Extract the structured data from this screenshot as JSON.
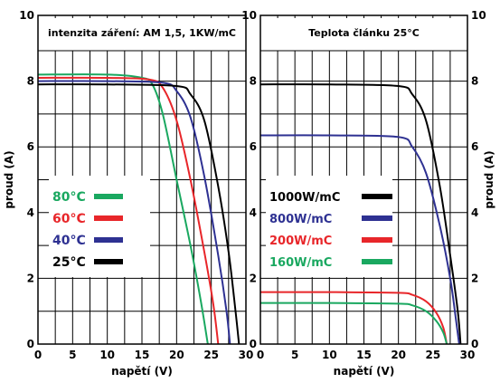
{
  "chart_data": [
    {
      "type": "line",
      "title": "intenzita záření: AM 1,5, 1KW/mC",
      "xlabel": "napětí (V)",
      "ylabel": "proud (A)",
      "xlim": [
        0,
        30
      ],
      "ylim": [
        0,
        10
      ],
      "xticks": [
        "0",
        "5",
        "10",
        "15",
        "20",
        "25",
        "30"
      ],
      "yticks": [
        "0",
        "2",
        "4",
        "6",
        "8",
        "10"
      ],
      "grid": true,
      "legend": "left",
      "series": [
        {
          "name": "80°C",
          "color": "#1aa860",
          "isc": 8.2,
          "voc": 24.5,
          "knee": 16.5,
          "points": [
            [
              0,
              8.2
            ],
            [
              10,
              8.2
            ],
            [
              15,
              8.1
            ],
            [
              16.5,
              7.9
            ],
            [
              18,
              7.0
            ],
            [
              20,
              5.0
            ],
            [
              22,
              3.0
            ],
            [
              23.5,
              1.3
            ],
            [
              24.5,
              0
            ]
          ]
        },
        {
          "name": "60°C",
          "color": "#e8262a",
          "isc": 8.1,
          "voc": 26.0,
          "knee": 18.0,
          "points": [
            [
              0,
              8.1
            ],
            [
              10,
              8.1
            ],
            [
              16,
              8.05
            ],
            [
              18,
              7.8
            ],
            [
              20,
              6.8
            ],
            [
              22,
              5.0
            ],
            [
              24,
              2.8
            ],
            [
              25.3,
              1.2
            ],
            [
              26,
              0
            ]
          ]
        },
        {
          "name": "40°C",
          "color": "#2e3192",
          "isc": 8.0,
          "voc": 27.7,
          "knee": 19.5,
          "points": [
            [
              0,
              8.0
            ],
            [
              10,
              8.0
            ],
            [
              18,
              7.95
            ],
            [
              20,
              7.7
            ],
            [
              22,
              6.9
            ],
            [
              24,
              5.1
            ],
            [
              26,
              2.7
            ],
            [
              27.2,
              1.0
            ],
            [
              27.7,
              0
            ]
          ]
        },
        {
          "name": "25°C",
          "color": "#000000",
          "isc": 7.9,
          "voc": 29.0,
          "knee": 21.0,
          "points": [
            [
              0,
              7.9
            ],
            [
              10,
              7.9
            ],
            [
              20,
              7.85
            ],
            [
              22,
              7.6
            ],
            [
              24,
              6.8
            ],
            [
              26,
              4.8
            ],
            [
              27.5,
              2.8
            ],
            [
              28.5,
              1.0
            ],
            [
              29,
              0
            ]
          ]
        }
      ]
    },
    {
      "type": "line",
      "title": "Teplota článku 25°C",
      "xlabel": "napětí (V)",
      "ylabel": "proud (A)",
      "xlim": [
        0,
        30
      ],
      "ylim": [
        0,
        10
      ],
      "xticks": [
        "0",
        "5",
        "10",
        "15",
        "20",
        "25",
        "30"
      ],
      "yticks": [
        "0",
        "2",
        "4",
        "6",
        "8",
        "10"
      ],
      "grid": true,
      "legend": "left",
      "series": [
        {
          "name": "1000W/mC",
          "color": "#000000",
          "points": [
            [
              0,
              7.9
            ],
            [
              10,
              7.9
            ],
            [
              20,
              7.85
            ],
            [
              22,
              7.6
            ],
            [
              24,
              6.8
            ],
            [
              26,
              4.8
            ],
            [
              27.5,
              2.7
            ],
            [
              28.6,
              1.0
            ],
            [
              29,
              0
            ]
          ]
        },
        {
          "name": "800W/mC",
          "color": "#2e3192",
          "points": [
            [
              0,
              6.35
            ],
            [
              10,
              6.35
            ],
            [
              20,
              6.3
            ],
            [
              22,
              6.0
            ],
            [
              24,
              5.2
            ],
            [
              26,
              3.6
            ],
            [
              27.5,
              2.0
            ],
            [
              28.3,
              0.8
            ],
            [
              28.8,
              0
            ]
          ]
        },
        {
          "name": "200W/mC",
          "color": "#e8262a",
          "points": [
            [
              0,
              1.58
            ],
            [
              10,
              1.58
            ],
            [
              20,
              1.56
            ],
            [
              22,
              1.5
            ],
            [
              24,
              1.3
            ],
            [
              25.5,
              0.95
            ],
            [
              26.5,
              0.5
            ],
            [
              27,
              0
            ]
          ]
        },
        {
          "name": "160W/mC",
          "color": "#1aa860",
          "points": [
            [
              0,
              1.25
            ],
            [
              10,
              1.25
            ],
            [
              20,
              1.23
            ],
            [
              22,
              1.18
            ],
            [
              24,
              1.0
            ],
            [
              25.5,
              0.7
            ],
            [
              26.5,
              0.35
            ],
            [
              27,
              0
            ]
          ]
        }
      ]
    }
  ]
}
